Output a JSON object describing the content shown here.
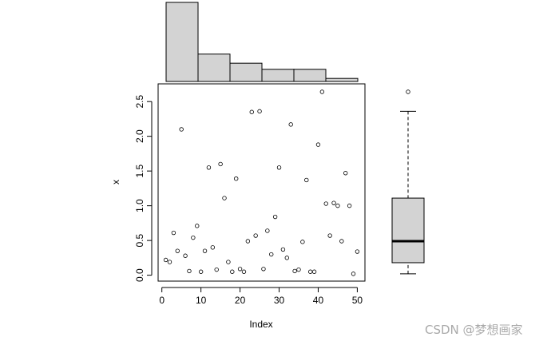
{
  "chart_data": [
    {
      "type": "histogram",
      "bins": [
        0,
        0.5,
        1,
        1.5,
        2,
        2.5,
        3
      ],
      "counts": [
        26,
        9,
        6,
        4,
        4,
        1
      ],
      "color": "#d3d3d3"
    },
    {
      "type": "scatter",
      "xlabel": "Index",
      "ylabel": "x",
      "x": [
        1,
        2,
        3,
        4,
        5,
        6,
        7,
        8,
        9,
        10,
        11,
        12,
        13,
        14,
        15,
        16,
        17,
        18,
        19,
        20,
        21,
        22,
        23,
        24,
        25,
        26,
        27,
        28,
        29,
        30,
        31,
        32,
        33,
        34,
        35,
        36,
        37,
        38,
        39,
        40,
        41,
        42,
        43,
        44,
        45,
        46,
        47,
        48,
        49,
        50
      ],
      "values": [
        0.22,
        0.19,
        0.61,
        0.35,
        2.1,
        0.28,
        0.06,
        0.54,
        0.71,
        0.05,
        0.35,
        1.55,
        0.4,
        0.08,
        1.6,
        1.11,
        0.19,
        0.05,
        1.39,
        0.09,
        0.05,
        0.49,
        2.35,
        0.57,
        2.36,
        0.09,
        0.64,
        0.3,
        0.84,
        1.55,
        0.37,
        0.25,
        2.17,
        0.06,
        0.08,
        0.48,
        1.37,
        0.05,
        0.05,
        1.88,
        2.64,
        1.03,
        0.57,
        1.04,
        1.0,
        0.49,
        1.47,
        1.0,
        0.02,
        0.34
      ],
      "xlim": [
        -0.96,
        51.96
      ],
      "ylim": [
        -0.085,
        2.755
      ],
      "xticks": [
        0,
        10,
        20,
        30,
        40,
        50
      ],
      "yticks": [
        {
          "value": 0,
          "label": "0.0"
        },
        0.5,
        {
          "value": 1,
          "label": "1.0"
        },
        1.5,
        {
          "value": 2,
          "label": "2.0"
        },
        2.5
      ]
    },
    {
      "type": "box",
      "ylim": [
        -0.085,
        2.755
      ],
      "min": 0.02,
      "q1": 0.18,
      "median": 0.49,
      "q3": 1.11,
      "max": 2.36,
      "outliers": [
        2.64
      ],
      "color": "#d3d3d3"
    }
  ],
  "watermark": "CSDN @梦想画家"
}
